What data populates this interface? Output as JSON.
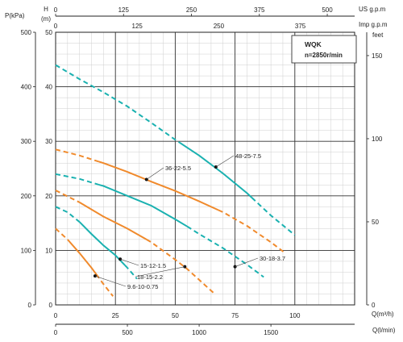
{
  "chart_data": {
    "type": "line",
    "title": "WQK",
    "subtitle": "n=2850r/min",
    "axes": {
      "h_m": {
        "label": "H",
        "unit": "(m)",
        "ticks": [
          0,
          10,
          20,
          30,
          40,
          50
        ],
        "range": [
          0,
          50
        ]
      },
      "p_kpa": {
        "label": "P(kPa)",
        "ticks": [
          0,
          100,
          200,
          300,
          400,
          500
        ],
        "range": [
          0,
          500
        ]
      },
      "h_feet": {
        "label": "feet",
        "ticks": [
          0,
          50,
          100,
          150
        ],
        "range": [
          0,
          164
        ]
      },
      "q_m3h": {
        "label": "Q(m³/h)",
        "ticks": [
          0,
          25,
          50,
          75,
          100
        ],
        "range": [
          0,
          125
        ]
      },
      "q_lmin": {
        "label": "Q(l/min)",
        "ticks": [
          0,
          500,
          1000,
          1500
        ],
        "range": [
          0,
          2083
        ]
      },
      "q_usgpm": {
        "label": "US g.p.m",
        "ticks": [
          0,
          125,
          250,
          375,
          500
        ],
        "range": [
          0,
          550
        ]
      },
      "q_impgpm": {
        "label": "Imp g.p.m",
        "ticks": [
          0,
          125,
          250,
          375
        ],
        "range": [
          0,
          458
        ]
      }
    },
    "grid": true,
    "colors": {
      "orange": "#f08a2c",
      "teal": "#1ab1b0",
      "grid": "#cfcfcf",
      "major": "#333333"
    },
    "series": [
      {
        "name": "9.6-10-0.75",
        "color": "orange",
        "marker": [
          16.5,
          5.3
        ],
        "points": [
          [
            0,
            14
          ],
          [
            5,
            12
          ],
          [
            10,
            9.5
          ],
          [
            15,
            6.8
          ],
          [
            20,
            3.8
          ],
          [
            24,
            1.6
          ]
        ],
        "solid_range": [
          5,
          17
        ]
      },
      {
        "name": "15-12-1.5",
        "color": "teal",
        "marker": [
          27,
          8.4
        ],
        "points": [
          [
            0,
            18
          ],
          [
            5,
            17
          ],
          [
            10,
            15.2
          ],
          [
            15,
            13
          ],
          [
            20,
            10.9
          ],
          [
            25,
            9.1
          ],
          [
            30,
            6.8
          ],
          [
            34,
            4.8
          ]
        ],
        "solid_range": [
          10,
          29
        ]
      },
      {
        "name": "18-15-2.2",
        "color": "orange",
        "marker": [
          54,
          7
        ],
        "points": [
          [
            0,
            21
          ],
          [
            10,
            18.8
          ],
          [
            20,
            16.2
          ],
          [
            30,
            14
          ],
          [
            40,
            11.5
          ],
          [
            50,
            8.3
          ],
          [
            55,
            6.6
          ],
          [
            60,
            4.6
          ],
          [
            66,
            2.2
          ]
        ],
        "solid_range": [
          10,
          38
        ]
      },
      {
        "name": "30-18-3.7",
        "color": "teal",
        "marker": [
          75,
          7
        ],
        "points": [
          [
            0,
            24
          ],
          [
            10,
            23.1
          ],
          [
            20,
            21.8
          ],
          [
            30,
            20
          ],
          [
            40,
            18.2
          ],
          [
            50,
            15.7
          ],
          [
            55,
            14.4
          ],
          [
            60,
            13
          ],
          [
            70,
            10.4
          ],
          [
            80,
            7.4
          ],
          [
            87,
            5.1
          ]
        ],
        "solid_range": [
          18,
          55
        ]
      },
      {
        "name": "36-22-5.5",
        "color": "orange",
        "marker": [
          38,
          23
        ],
        "points": [
          [
            0,
            28.5
          ],
          [
            10,
            27.4
          ],
          [
            20,
            26
          ],
          [
            30,
            24.4
          ],
          [
            40,
            22.6
          ],
          [
            50,
            20.9
          ],
          [
            60,
            19
          ],
          [
            70,
            17
          ],
          [
            80,
            14.5
          ],
          [
            90,
            11.5
          ],
          [
            96,
            9.5
          ]
        ],
        "solid_range": [
          18,
          68
        ]
      },
      {
        "name": "48-25-7.5",
        "color": "teal",
        "marker": [
          67,
          25.3
        ],
        "points": [
          [
            0,
            44
          ],
          [
            10,
            41.4
          ],
          [
            20,
            39
          ],
          [
            30,
            36.4
          ],
          [
            40,
            33.4
          ],
          [
            50,
            30.3
          ],
          [
            60,
            27.4
          ],
          [
            70,
            24.1
          ],
          [
            80,
            20.5
          ],
          [
            90,
            16.4
          ],
          [
            100,
            12.8
          ]
        ],
        "solid_range": [
          52,
          82
        ]
      }
    ]
  }
}
